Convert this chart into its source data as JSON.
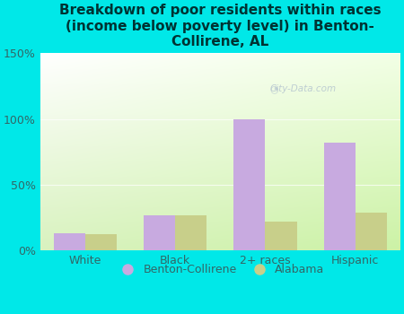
{
  "title": "Breakdown of poor residents within races\n(income below poverty level) in Benton-\nCollirene, AL",
  "categories": [
    "White",
    "Black",
    "2+ races",
    "Hispanic"
  ],
  "benton_values": [
    13,
    27,
    100,
    82
  ],
  "alabama_values": [
    12,
    27,
    22,
    29
  ],
  "benton_color": "#c8aae0",
  "alabama_color": "#c8cf8a",
  "bg_color": "#00e8e8",
  "ylim": [
    0,
    150
  ],
  "yticks": [
    0,
    50,
    100,
    150
  ],
  "ytick_labels": [
    "0%",
    "50%",
    "100%",
    "150%"
  ],
  "bar_width": 0.35,
  "legend_labels": [
    "Benton-Collirene",
    "Alabama"
  ],
  "title_fontsize": 11,
  "tick_fontsize": 9,
  "legend_fontsize": 9,
  "watermark": "City-Data.com"
}
